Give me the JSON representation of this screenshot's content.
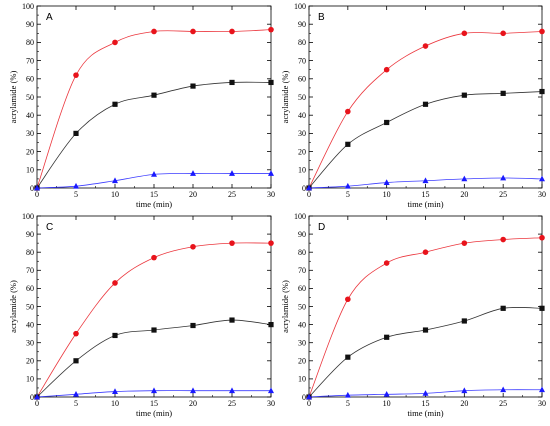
{
  "chart_data": [
    {
      "type": "scatter",
      "panel_label": "A",
      "xlabel": "time (min)",
      "ylabel": "acrylamide   (%)",
      "xlim": [
        0,
        30
      ],
      "ylim": [
        0,
        100
      ],
      "xticks": [
        0,
        5,
        10,
        15,
        20,
        25,
        30
      ],
      "yticks": [
        0,
        10,
        20,
        30,
        40,
        50,
        60,
        70,
        80,
        90,
        100
      ],
      "grid": false,
      "series": [
        {
          "color": "#e8131b",
          "marker": "circle",
          "x": [
            0,
            5,
            10,
            15,
            20,
            25,
            30
          ],
          "values": [
            0,
            62,
            80,
            86,
            86,
            86,
            87
          ]
        },
        {
          "color": "#111111",
          "marker": "square",
          "x": [
            0,
            5,
            10,
            15,
            20,
            25,
            30
          ],
          "values": [
            0,
            30,
            46,
            51,
            56,
            58,
            58
          ]
        },
        {
          "color": "#1a1aff",
          "marker": "triangle",
          "x": [
            0,
            5,
            10,
            15,
            20,
            25,
            30
          ],
          "values": [
            0,
            1,
            4,
            7.5,
            8,
            8,
            8
          ]
        }
      ]
    },
    {
      "type": "scatter",
      "panel_label": "B",
      "xlabel": "time (min)",
      "ylabel": "acrylamide   (%)",
      "xlim": [
        0,
        30
      ],
      "ylim": [
        0,
        100
      ],
      "xticks": [
        0,
        5,
        10,
        15,
        20,
        25,
        30
      ],
      "yticks": [
        0,
        10,
        20,
        30,
        40,
        50,
        60,
        70,
        80,
        90,
        100
      ],
      "grid": false,
      "series": [
        {
          "color": "#e8131b",
          "marker": "circle",
          "x": [
            0,
            5,
            10,
            15,
            20,
            25,
            30
          ],
          "values": [
            0,
            42,
            65,
            78,
            85,
            85,
            86
          ]
        },
        {
          "color": "#111111",
          "marker": "square",
          "x": [
            0,
            5,
            10,
            15,
            20,
            25,
            30
          ],
          "values": [
            0,
            24,
            36,
            46,
            51,
            52,
            53
          ]
        },
        {
          "color": "#1a1aff",
          "marker": "triangle",
          "x": [
            0,
            5,
            10,
            15,
            20,
            25,
            30
          ],
          "values": [
            0,
            1,
            3,
            4,
            5,
            5.5,
            5
          ]
        }
      ]
    },
    {
      "type": "scatter",
      "panel_label": "C",
      "xlabel": "time (min)",
      "ylabel": "acrylamide   (%)",
      "xlim": [
        0,
        30
      ],
      "ylim": [
        0,
        100
      ],
      "xticks": [
        0,
        5,
        10,
        15,
        20,
        25,
        30
      ],
      "yticks": [
        0,
        10,
        20,
        30,
        40,
        50,
        60,
        70,
        80,
        90,
        100
      ],
      "grid": false,
      "series": [
        {
          "color": "#e8131b",
          "marker": "circle",
          "x": [
            0,
            5,
            10,
            15,
            20,
            25,
            30
          ],
          "values": [
            0,
            35,
            63,
            77,
            83,
            85,
            85
          ]
        },
        {
          "color": "#111111",
          "marker": "square",
          "x": [
            0,
            5,
            10,
            15,
            20,
            25,
            30
          ],
          "values": [
            0,
            20,
            34,
            37,
            39.5,
            42.5,
            40
          ]
        },
        {
          "color": "#1a1aff",
          "marker": "triangle",
          "x": [
            0,
            5,
            10,
            15,
            20,
            25,
            30
          ],
          "values": [
            0,
            1.5,
            3,
            3.5,
            3.5,
            3.5,
            3.5
          ]
        }
      ]
    },
    {
      "type": "scatter",
      "panel_label": "D",
      "xlabel": "time (min)",
      "ylabel": "acrylamide   (%)",
      "xlim": [
        0,
        30
      ],
      "ylim": [
        0,
        100
      ],
      "xticks": [
        0,
        5,
        10,
        15,
        20,
        25,
        30
      ],
      "yticks": [
        0,
        10,
        20,
        30,
        40,
        50,
        60,
        70,
        80,
        90,
        100
      ],
      "grid": false,
      "series": [
        {
          "color": "#e8131b",
          "marker": "circle",
          "x": [
            0,
            5,
            10,
            15,
            20,
            25,
            30
          ],
          "values": [
            0,
            54,
            74,
            80,
            85,
            87,
            88
          ]
        },
        {
          "color": "#111111",
          "marker": "square",
          "x": [
            0,
            5,
            10,
            15,
            20,
            25,
            30
          ],
          "values": [
            0,
            22,
            33,
            37,
            42,
            49,
            49
          ]
        },
        {
          "color": "#1a1aff",
          "marker": "triangle",
          "x": [
            0,
            5,
            10,
            15,
            20,
            25,
            30
          ],
          "values": [
            0,
            1,
            1.5,
            2,
            3.5,
            4,
            4
          ]
        }
      ]
    }
  ]
}
